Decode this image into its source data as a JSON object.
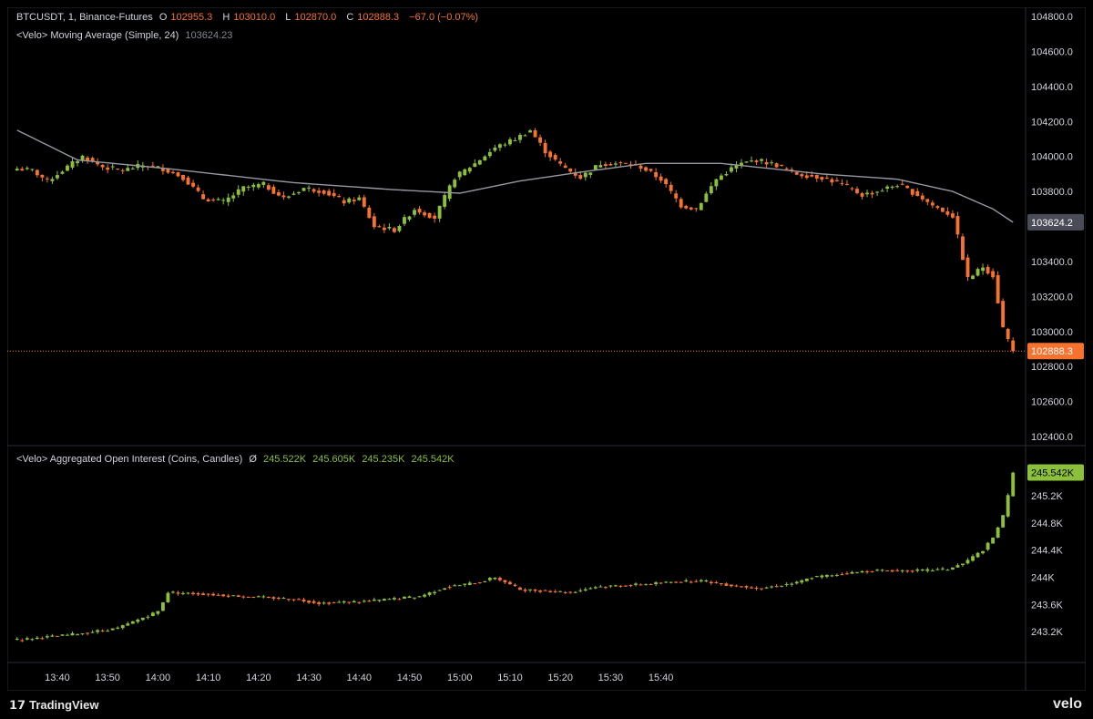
{
  "legend": {
    "symbol": "BTCUSDT, 1, Binance-Futures",
    "o_label": "O",
    "o_value": "102955.3",
    "h_label": "H",
    "h_value": "103010.0",
    "l_label": "L",
    "l_value": "102870.0",
    "c_label": "C",
    "c_value": "102888.3",
    "change": "−67.0 (−0.07%)",
    "ma_title": "<Velo> Moving Average (Simple, 24)",
    "ma_value": "103624.23",
    "oi_title": "<Velo> Aggregated Open Interest (Coins, Candles)",
    "oi_symbol": "Ø",
    "oi_o": "245.522K",
    "oi_h": "245.605K",
    "oi_l": "245.235K",
    "oi_c": "245.542K"
  },
  "footer": {
    "brand": "TradingView",
    "watermark": "velo"
  },
  "colors": {
    "up": "#8bbf3c",
    "down": "#f7722f",
    "ma": "#9598a1",
    "grid": "#2a2e39",
    "axis_text": "#d1d4dc"
  },
  "chart_data": [
    {
      "type": "candlestick",
      "title": "BTCUSDT, 1, Binance-Futures",
      "ylim": [
        102400,
        104800
      ],
      "y_ticks": [
        102400,
        102600,
        102800,
        103000,
        103200,
        103400,
        103600,
        103800,
        104000,
        104200,
        104400,
        104600,
        104800
      ],
      "y_tick_labels": [
        "102400.0",
        "102600.0",
        "102800.0",
        "103000.0",
        "103200.0",
        "103400.0",
        "103600.0",
        "103800.0",
        "104000.0",
        "104200.0",
        "104400.0",
        "104600.0",
        "104800.0"
      ],
      "x_ticks": [
        "13:40",
        "13:50",
        "14:00",
        "14:10",
        "14:20",
        "14:30",
        "14:40",
        "14:50",
        "15:00",
        "15:10",
        "15:20",
        "15:30",
        "15:40"
      ],
      "last_price": 102888.3,
      "last_price_label": "102888.3",
      "ma_last": 103624.2,
      "ma_last_label": "103624.2",
      "close_anchors": [
        [
          0,
          103930
        ],
        [
          3,
          103920
        ],
        [
          6,
          103860
        ],
        [
          9,
          103920
        ],
        [
          13,
          104000
        ],
        [
          17,
          103940
        ],
        [
          21,
          103920
        ],
        [
          25,
          103950
        ],
        [
          29,
          103930
        ],
        [
          33,
          103880
        ],
        [
          37,
          103760
        ],
        [
          41,
          103740
        ],
        [
          45,
          103820
        ],
        [
          49,
          103840
        ],
        [
          53,
          103760
        ],
        [
          57,
          103820
        ],
        [
          61,
          103800
        ],
        [
          65,
          103740
        ],
        [
          68,
          103760
        ],
        [
          71,
          103600
        ],
        [
          75,
          103580
        ],
        [
          79,
          103700
        ],
        [
          83,
          103650
        ],
        [
          87,
          103880
        ],
        [
          91,
          103960
        ],
        [
          95,
          104050
        ],
        [
          99,
          104100
        ],
        [
          102,
          104150
        ],
        [
          105,
          104030
        ],
        [
          108,
          103950
        ],
        [
          112,
          103880
        ],
        [
          116,
          103960
        ],
        [
          120,
          103960
        ],
        [
          124,
          103940
        ],
        [
          128,
          103870
        ],
        [
          132,
          103720
        ],
        [
          135,
          103700
        ],
        [
          139,
          103870
        ],
        [
          143,
          103950
        ],
        [
          147,
          103980
        ],
        [
          151,
          103950
        ],
        [
          155,
          103900
        ],
        [
          160,
          103880
        ],
        [
          164,
          103840
        ],
        [
          168,
          103780
        ],
        [
          171,
          103800
        ],
        [
          175,
          103840
        ],
        [
          179,
          103780
        ],
        [
          182,
          103720
        ],
        [
          186,
          103660
        ],
        [
          189,
          103300
        ],
        [
          192,
          103370
        ],
        [
          194,
          103320
        ],
        [
          196,
          103020
        ],
        [
          198,
          102888
        ]
      ],
      "ma_anchors": [
        [
          0,
          104150
        ],
        [
          12,
          103980
        ],
        [
          30,
          103930
        ],
        [
          55,
          103850
        ],
        [
          75,
          103810
        ],
        [
          88,
          103790
        ],
        [
          100,
          103860
        ],
        [
          112,
          103910
        ],
        [
          125,
          103960
        ],
        [
          140,
          103960
        ],
        [
          160,
          103900
        ],
        [
          175,
          103870
        ],
        [
          186,
          103800
        ],
        [
          194,
          103700
        ],
        [
          198,
          103624
        ]
      ]
    },
    {
      "type": "candlestick",
      "title": "<Velo> Aggregated Open Interest (Coins, Candles)",
      "ylim": [
        242.8,
        245.75
      ],
      "y_ticks": [
        243.2,
        243.6,
        244.0,
        244.4,
        244.8,
        245.2
      ],
      "y_tick_labels": [
        "243.2K",
        "243.6K",
        "244K",
        "244.4K",
        "244.8K",
        "245.2K"
      ],
      "last_value": 245.542,
      "last_value_label": "245.542K",
      "close_anchors": [
        [
          0,
          243.08
        ],
        [
          10,
          243.15
        ],
        [
          20,
          243.25
        ],
        [
          28,
          243.5
        ],
        [
          30,
          243.78
        ],
        [
          40,
          243.74
        ],
        [
          50,
          243.7
        ],
        [
          55,
          243.68
        ],
        [
          60,
          243.62
        ],
        [
          70,
          243.65
        ],
        [
          80,
          243.72
        ],
        [
          85,
          243.85
        ],
        [
          92,
          243.93
        ],
        [
          95,
          244.0
        ],
        [
          100,
          243.82
        ],
        [
          110,
          243.78
        ],
        [
          115,
          243.86
        ],
        [
          125,
          243.9
        ],
        [
          130,
          243.93
        ],
        [
          136,
          243.95
        ],
        [
          142,
          243.88
        ],
        [
          148,
          243.84
        ],
        [
          155,
          243.92
        ],
        [
          158,
          244.0
        ],
        [
          170,
          244.1
        ],
        [
          180,
          244.1
        ],
        [
          185,
          244.12
        ],
        [
          188,
          244.2
        ],
        [
          192,
          244.4
        ],
        [
          194,
          244.58
        ],
        [
          196,
          244.9
        ],
        [
          197,
          245.2
        ],
        [
          198,
          245.54
        ]
      ]
    }
  ]
}
